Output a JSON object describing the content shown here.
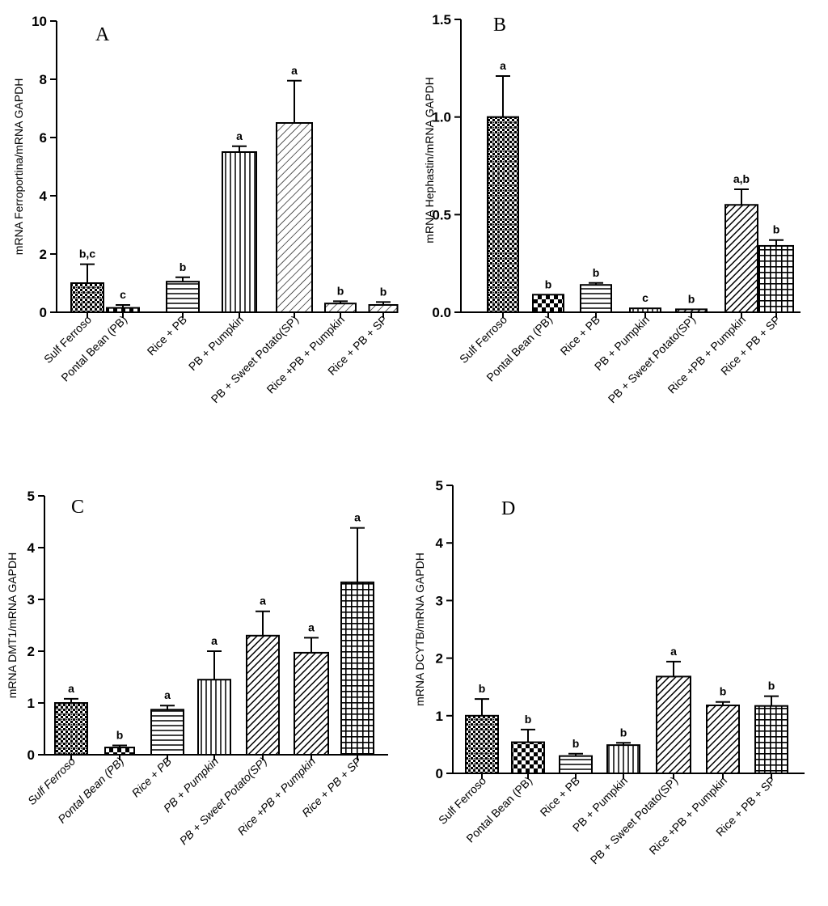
{
  "chart_data": [
    {
      "type": "bar",
      "panel_letter": "A",
      "ylabel": "mRNA Ferroportina/mRNA GAPDH",
      "ylim": [
        0,
        10
      ],
      "yticks": [
        "0",
        "2",
        "4",
        "6",
        "8",
        "10"
      ],
      "italic_categories": false,
      "categories": [
        "Sulf Ferroso",
        "Pontal Bean (PB)",
        "Rice + PB",
        "PB + Pumpkin",
        "PB + Sweet Potato(SP)",
        "Rice +PB + Pumpkin",
        "Rice + PB + SP"
      ],
      "values": [
        1.0,
        0.15,
        1.05,
        5.5,
        6.5,
        0.3,
        0.25
      ],
      "errors": [
        0.65,
        0.1,
        0.15,
        0.2,
        1.45,
        0.08,
        0.1
      ],
      "significance": [
        "b,c",
        "c",
        "b",
        "a",
        "a",
        "b",
        "b"
      ],
      "patterns": [
        "dots",
        "checker",
        "hlines",
        "vlines",
        "diag-light",
        "diag-light",
        "diag-light"
      ]
    },
    {
      "type": "bar",
      "panel_letter": "B",
      "ylabel": "mRNA Hephastin/mRNA GAPDH",
      "ylim": [
        0,
        1.5
      ],
      "yticks": [
        "0.0",
        "0.5",
        "1.0",
        "1.5"
      ],
      "italic_categories": false,
      "categories": [
        "Sulf Ferroso",
        "Pontal Bean (PB)",
        "Rice + PB",
        "PB + Pumpkin",
        "PB + Sweet Potato(SP)",
        "Rice +PB + Pumpkin",
        "Rice + PB + SP"
      ],
      "values": [
        1.0,
        0.09,
        0.14,
        0.02,
        0.015,
        0.55,
        0.34
      ],
      "errors": [
        0.21,
        0.0,
        0.01,
        0.0,
        0.0,
        0.08,
        0.03
      ],
      "significance": [
        "a",
        "b",
        "b",
        "c",
        "b",
        "a,b",
        "b"
      ],
      "patterns": [
        "dots",
        "checker",
        "hlines",
        "vlines",
        "diag-heavy",
        "diag-heavy",
        "grid"
      ]
    },
    {
      "type": "bar",
      "panel_letter": "C",
      "ylabel": "mRNA DMT1/mRNA GAPDH",
      "ylim": [
        0,
        5
      ],
      "yticks": [
        "0",
        "1",
        "2",
        "3",
        "4",
        "5"
      ],
      "italic_categories": true,
      "categories": [
        "Sulf Ferroso",
        "Pontal Bean (PB)",
        "Rice + PB",
        "PB + Pumpkin",
        "PB + Sweet Potato(SP)",
        "Rice +PB + Pumpkin",
        "Rice + PB + SP"
      ],
      "values": [
        1.0,
        0.14,
        0.87,
        1.45,
        2.3,
        1.97,
        3.33
      ],
      "errors": [
        0.08,
        0.04,
        0.08,
        0.55,
        0.47,
        0.29,
        1.05
      ],
      "significance": [
        "a",
        "b",
        "a",
        "a",
        "a",
        "a",
        "a"
      ],
      "patterns": [
        "dots",
        "checker",
        "hlines",
        "vlines",
        "diag-heavy",
        "diag-heavy",
        "grid"
      ]
    },
    {
      "type": "bar",
      "panel_letter": "D",
      "ylabel": "mRNA DCYTB/mRNA GAPDH",
      "ylim": [
        0,
        5
      ],
      "yticks": [
        "0",
        "1",
        "2",
        "3",
        "4",
        "5"
      ],
      "italic_categories": false,
      "categories": [
        "Sulf Ferroso",
        "Pontal Bean (PB)",
        "Rice + PB",
        "PB + Pumpkin",
        "PB + Sweet Potato(SP)",
        "Rice +PB + Pumpkin",
        "Rice + PB + SP"
      ],
      "values": [
        1.0,
        0.54,
        0.3,
        0.49,
        1.68,
        1.18,
        1.17
      ],
      "errors": [
        0.29,
        0.22,
        0.04,
        0.04,
        0.26,
        0.06,
        0.17
      ],
      "significance": [
        "b",
        "b",
        "b",
        "b",
        "a",
        "b",
        "b"
      ],
      "patterns": [
        "dots",
        "checker",
        "hlines",
        "vlines",
        "diag-heavy",
        "diag-heavy",
        "grid"
      ]
    }
  ]
}
